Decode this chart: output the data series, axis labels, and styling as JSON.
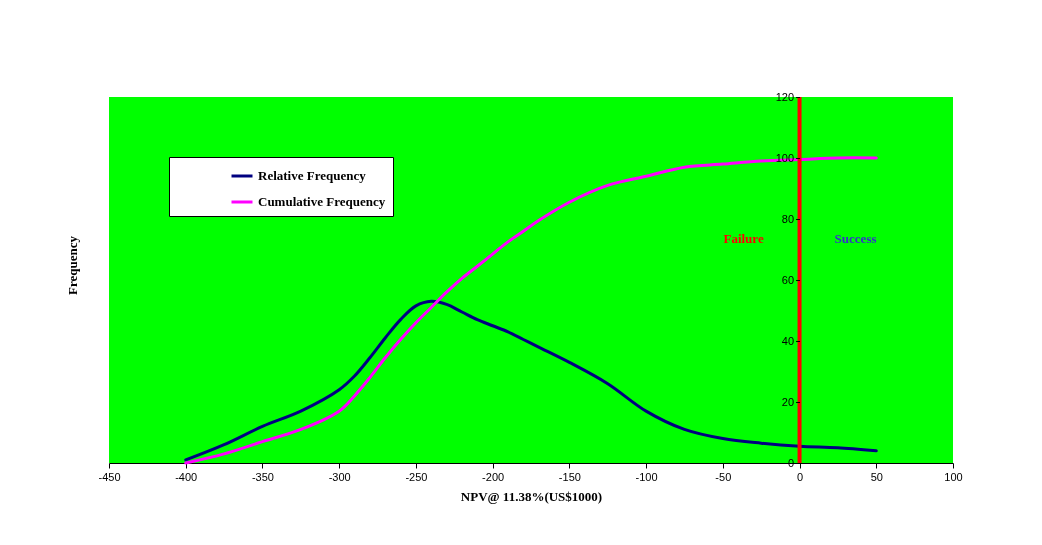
{
  "chart_data": {
    "type": "line",
    "xlabel": "NPV@ 11.38%(US$1000)",
    "ylabel": "Frequency",
    "x": [
      -400,
      -375,
      -350,
      -325,
      -300,
      -290,
      -280,
      -270,
      -260,
      -250,
      -240,
      -230,
      -220,
      -210,
      -200,
      -190,
      -180,
      -170,
      -150,
      -125,
      -100,
      -75,
      -50,
      -25,
      0,
      25,
      50
    ],
    "series": [
      {
        "name": "Relative Frequency",
        "color": "#000080",
        "values": [
          1,
          6,
          12,
          17,
          24,
          28.5,
          34.5,
          41,
          47,
          51.5,
          53,
          52,
          49.5,
          47,
          45,
          43,
          40.5,
          38,
          33,
          26,
          17,
          11,
          8,
          6.5,
          5.5,
          5,
          4
        ]
      },
      {
        "name": "Cumulative Frequency",
        "color": "#ff00ff",
        "values": [
          0,
          3,
          7,
          11,
          17,
          22,
          28,
          34.5,
          40.5,
          46,
          51,
          56,
          60.5,
          64.5,
          68.5,
          72.5,
          76,
          79.5,
          85.5,
          91,
          94,
          97,
          98,
          99,
          99.5,
          100,
          100
        ]
      }
    ],
    "xlim": [
      -450,
      100
    ],
    "xticks": [
      -450,
      -400,
      -350,
      -300,
      -250,
      -200,
      -150,
      -100,
      -50,
      0,
      50,
      100
    ],
    "ylim": [
      0,
      120
    ],
    "yticks": [
      0,
      20,
      40,
      60,
      80,
      100,
      120
    ],
    "ref_lines": [
      {
        "axis": "x",
        "value": 0,
        "color": "#ff0000"
      }
    ],
    "annotations": [
      "Failure",
      "Success"
    ],
    "grid": false,
    "legend": "top left",
    "marker": "none",
    "line_style": "solid"
  }
}
